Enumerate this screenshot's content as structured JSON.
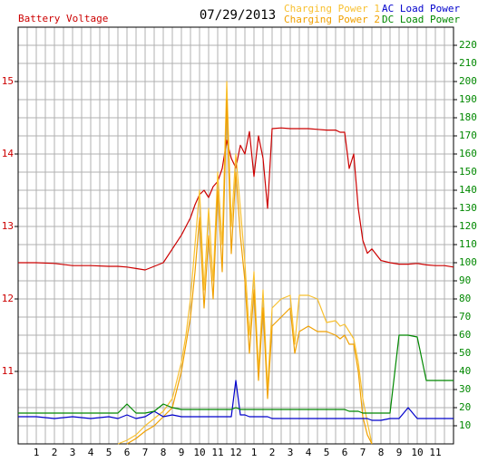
{
  "chart_data": {
    "type": "line",
    "title": "07/29/2013",
    "x": [
      0,
      1,
      2,
      3,
      4,
      5,
      5.5,
      6,
      6.5,
      7,
      7.5,
      8,
      8.5,
      9,
      9.25,
      9.5,
      9.75,
      10,
      10.25,
      10.5,
      10.75,
      11,
      11.25,
      11.5,
      11.75,
      12,
      12.25,
      12.5,
      12.75,
      13,
      13.25,
      13.5,
      13.75,
      14,
      14.5,
      15,
      15.25,
      15.5,
      16,
      16.5,
      17,
      17.5,
      17.75,
      18,
      18.25,
      18.5,
      18.75,
      19,
      19.25,
      19.5,
      20,
      20.5,
      21,
      21.5,
      22,
      22.5,
      23,
      23.5,
      24
    ],
    "xlim": [
      0,
      24
    ],
    "xticks": [
      1,
      2,
      3,
      4,
      5,
      6,
      7,
      8,
      9,
      10,
      11,
      12,
      {
        "value": 13,
        "label": "1"
      },
      {
        "value": 14,
        "label": "2"
      },
      {
        "value": 15,
        "label": "3"
      },
      {
        "value": 16,
        "label": "4"
      },
      {
        "value": 17,
        "label": "5"
      },
      {
        "value": 18,
        "label": "6"
      },
      {
        "value": 19,
        "label": "7"
      },
      {
        "value": 20,
        "label": "8"
      },
      {
        "value": 21,
        "label": "9"
      },
      {
        "value": 22,
        "label": "10"
      },
      {
        "value": 23,
        "label": "11"
      }
    ],
    "ylim": [
      10,
      15.75
    ],
    "yticks": [
      11,
      12,
      13,
      14,
      15
    ],
    "y2lim": [
      0,
      230
    ],
    "y2ticks": [
      10,
      20,
      30,
      40,
      50,
      60,
      70,
      80,
      90,
      100,
      110,
      120,
      130,
      140,
      150,
      160,
      170,
      180,
      190,
      200,
      210,
      220
    ],
    "grid": true,
    "series": [
      {
        "name": "Battery Voltage",
        "color": "#cc0000",
        "axis": "y",
        "values": [
          12.5,
          12.5,
          12.49,
          12.46,
          12.46,
          12.45,
          12.45,
          12.44,
          12.42,
          12.4,
          12.45,
          12.5,
          12.69,
          12.88,
          13.0,
          13.12,
          13.3,
          13.44,
          13.5,
          13.4,
          13.55,
          13.62,
          13.8,
          14.19,
          13.94,
          13.81,
          14.12,
          14.0,
          14.31,
          13.69,
          14.25,
          13.94,
          13.25,
          14.35,
          14.36,
          14.35,
          14.35,
          14.35,
          14.35,
          14.34,
          14.33,
          14.33,
          14.3,
          14.3,
          13.8,
          14.0,
          13.25,
          12.81,
          12.63,
          12.69,
          12.53,
          12.5,
          12.48,
          12.48,
          12.49,
          12.47,
          12.46,
          12.46,
          12.44
        ]
      },
      {
        "name": "Charging Power 1",
        "color": "#f8c030",
        "axis": "y2",
        "values": [
          null,
          null,
          null,
          null,
          null,
          null,
          0,
          2,
          5,
          10,
          14,
          18,
          25,
          45,
          60,
          80,
          110,
          140,
          85,
          130,
          90,
          150,
          110,
          200,
          120,
          160,
          130,
          100,
          60,
          95,
          40,
          85,
          30,
          75,
          80,
          82,
          55,
          82,
          82,
          80,
          67,
          68,
          65,
          66,
          62,
          58,
          45,
          25,
          12,
          0,
          null,
          null,
          null,
          null,
          null,
          null,
          null,
          null,
          null
        ]
      },
      {
        "name": "Charging Power 2",
        "color": "#f0a000",
        "axis": "y2",
        "values": [
          null,
          null,
          null,
          null,
          null,
          null,
          null,
          0,
          3,
          7,
          10,
          15,
          20,
          40,
          55,
          70,
          95,
          125,
          75,
          115,
          80,
          140,
          95,
          190,
          105,
          150,
          115,
          90,
          50,
          85,
          35,
          75,
          25,
          65,
          70,
          75,
          50,
          62,
          65,
          62,
          62,
          60,
          58,
          60,
          55,
          55,
          40,
          15,
          5,
          0,
          null,
          null,
          null,
          null,
          null,
          null,
          null,
          null,
          null
        ]
      },
      {
        "name": "AC Load Power",
        "color": "#0000cc",
        "axis": "y2",
        "values": [
          15,
          15,
          14,
          15,
          14,
          15,
          14,
          16,
          14,
          15,
          18,
          15,
          16,
          15,
          15,
          15,
          15,
          15,
          15,
          15,
          15,
          15,
          15,
          15,
          15,
          35,
          16,
          16,
          15,
          15,
          15,
          15,
          15,
          14,
          14,
          14,
          14,
          14,
          14,
          14,
          14,
          14,
          14,
          14,
          14,
          14,
          14,
          14,
          14,
          13,
          13,
          14,
          14,
          20,
          14,
          14,
          14,
          14,
          14
        ]
      },
      {
        "name": "DC Load Power",
        "color": "#008800",
        "axis": "y2",
        "values": [
          17,
          17,
          17,
          17,
          17,
          17,
          17,
          22,
          17,
          17,
          18,
          22,
          20,
          19,
          19,
          19,
          19,
          19,
          19,
          19,
          19,
          19,
          19,
          19,
          19,
          20,
          19,
          19,
          19,
          19,
          19,
          19,
          19,
          19,
          19,
          19,
          19,
          19,
          19,
          19,
          19,
          19,
          19,
          19,
          18,
          18,
          18,
          17,
          17,
          17,
          17,
          17,
          60,
          60,
          59,
          35,
          35,
          35,
          35
        ]
      }
    ]
  }
}
